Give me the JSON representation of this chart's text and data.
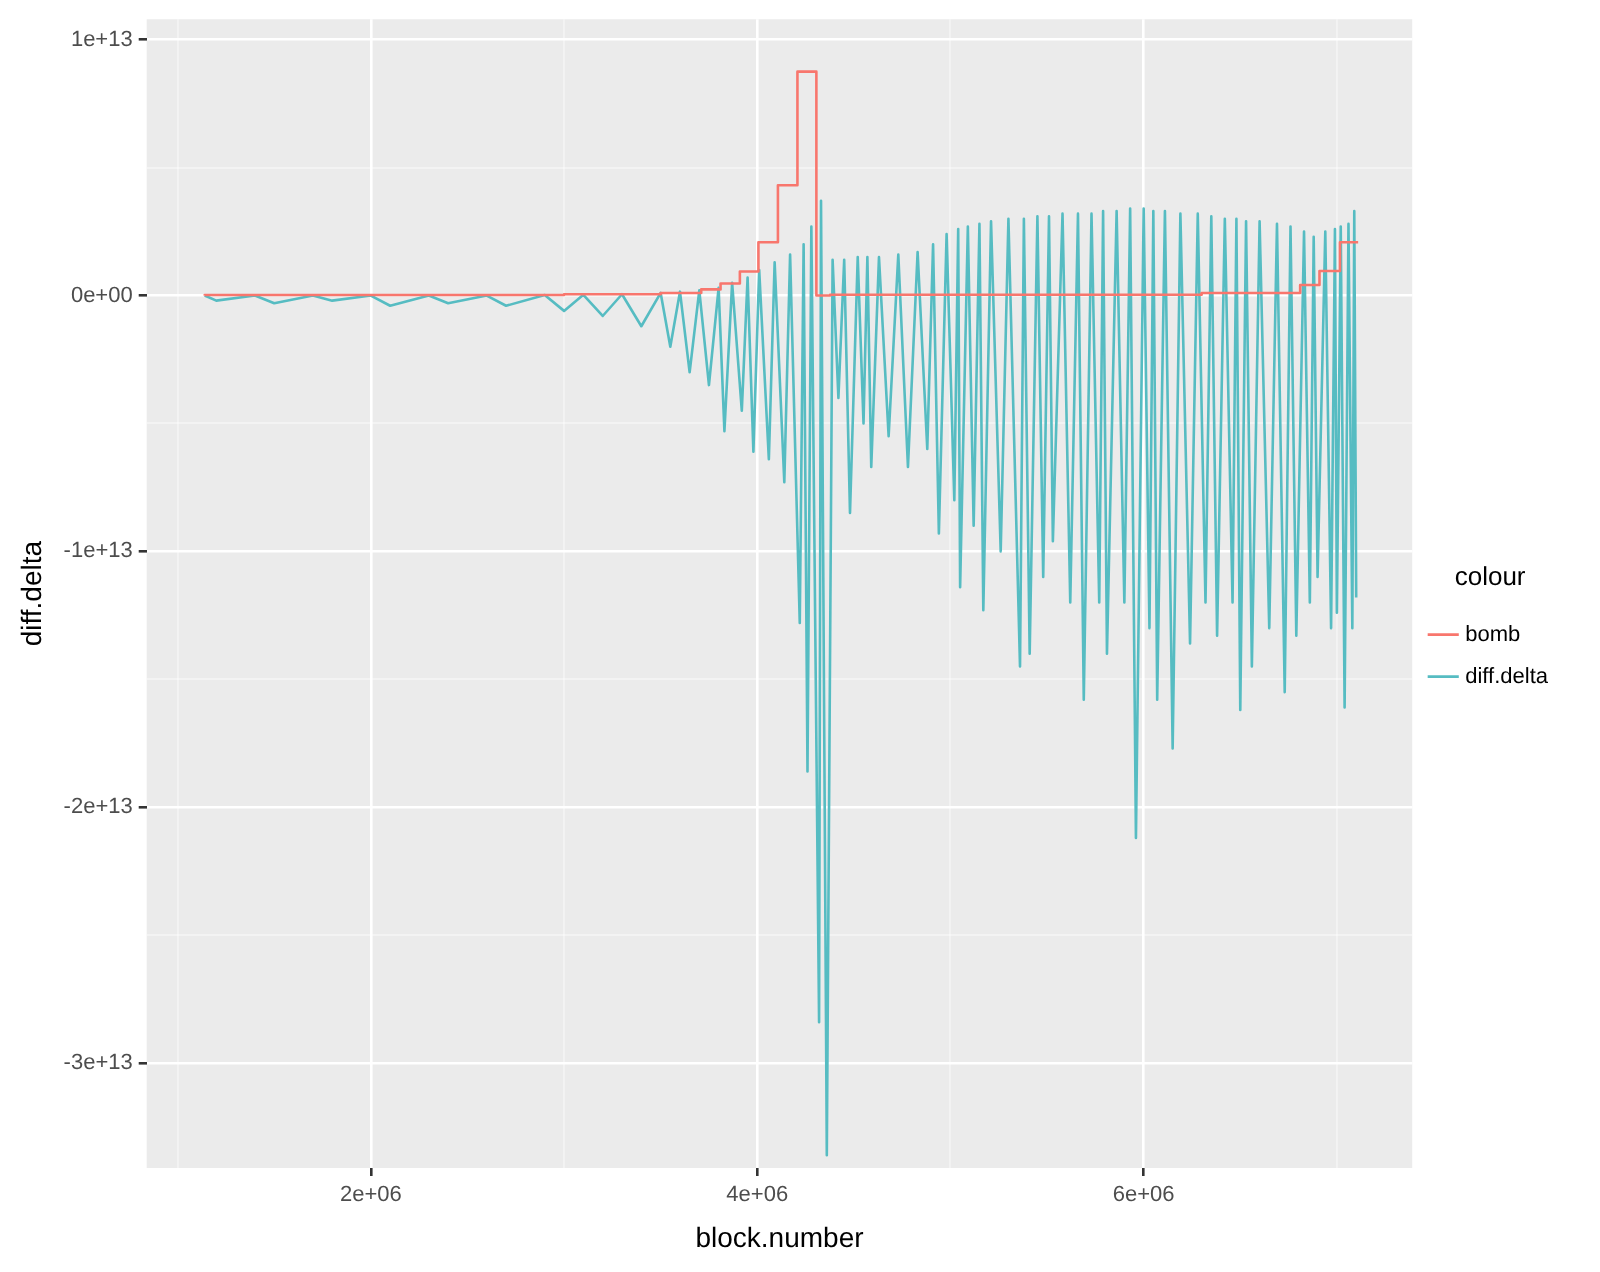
{
  "chart_data": {
    "type": "line",
    "xlabel": "block.number",
    "ylabel": "diff.delta",
    "legend_title": "colour",
    "legend": "right",
    "grid": true,
    "marker": "none",
    "xlim": [
      840000.0,
      7390000.0
    ],
    "ylim": [
      -34100000000000.0,
      10800000000000.0
    ],
    "xticks": [
      {
        "value": 1000000.0,
        "label": null
      },
      {
        "value": 2000000.0,
        "label": "2e+06"
      },
      {
        "value": 3000000.0,
        "label": null
      },
      {
        "value": 4000000.0,
        "label": "4e+06"
      },
      {
        "value": 5000000.0,
        "label": null
      },
      {
        "value": 6000000.0,
        "label": "6e+06"
      },
      {
        "value": 7000000.0,
        "label": null
      }
    ],
    "yticks": [
      {
        "value": -30000000000000.0,
        "label": "-3e+13"
      },
      {
        "value": -25000000000000.0,
        "label": null
      },
      {
        "value": -20000000000000.0,
        "label": "-2e+13"
      },
      {
        "value": -15000000000000.0,
        "label": null
      },
      {
        "value": -10000000000000.0,
        "label": "-1e+13"
      },
      {
        "value": -5000000000000.0,
        "label": null
      },
      {
        "value": 0,
        "label": "0e+00"
      },
      {
        "value": 5000000000000.0,
        "label": null
      },
      {
        "value": 10000000000000.0,
        "label": "1e+13"
      }
    ],
    "series": [
      {
        "name": "bomb",
        "type": "step",
        "color": "#f8766d",
        "x": [
          1140000.0,
          3000000.0,
          3500000.0,
          3710000.0,
          3810000.0,
          3910000.0,
          4006000.0,
          4107000.0,
          4208000.0,
          4306000.0,
          4377000.0,
          6300000.0,
          6810000.0,
          6910000.0,
          7016000.0,
          7110000.0
        ],
        "values": [
          0,
          20000000000.0,
          50000000000.0,
          100000000000.0,
          240000000000.0,
          470000000000.0,
          940000000000.0,
          2080000000000.0,
          4310000000000.0,
          8750000000000.0,
          0,
          30000000000.0,
          100000000000.0,
          410000000000.0,
          960000000000.0,
          2080000000000.0
        ]
      },
      {
        "name": "diff.delta",
        "type": "line",
        "color": "#56bcc2",
        "x": [
          1140000.0,
          1200000.0,
          1400000.0,
          1500000.0,
          1700000.0,
          1800000.0,
          2000000.0,
          2100000.0,
          2300000.0,
          2400000.0,
          2600000.0,
          2700000.0,
          2900000.0,
          3000000.0,
          3100000.0,
          3200000.0,
          3300000.0,
          3400000.0,
          3500000.0,
          3550000.0,
          3600000.0,
          3650000.0,
          3700000.0,
          3750000.0,
          3800000.0,
          3830000.0,
          3870000.0,
          3920000.0,
          3950000.0,
          3980000.0,
          4010000.0,
          4060000.0,
          4090000.0,
          4140000.0,
          4170000.0,
          4220000.0,
          4240000.0,
          4260000.0,
          4280000.0,
          4320000.0,
          4330000.0,
          4360000.0,
          4390000.0,
          4420000.0,
          4450000.0,
          4480000.0,
          4520000.0,
          4550000.0,
          4570000.0,
          4590000.0,
          4630000.0,
          4680000.0,
          4730000.0,
          4780000.0,
          4830000.0,
          4880000.0,
          4910000.0,
          4940000.0,
          4980000.0,
          5020000.0,
          5040000.0,
          5050000.0,
          5090000.0,
          5120000.0,
          5150000.0,
          5170000.0,
          5210000.0,
          5260000.0,
          5300000.0,
          5360000.0,
          5380000.0,
          5410000.0,
          5450000.0,
          5480000.0,
          5510000.0,
          5530000.0,
          5580000.0,
          5620000.0,
          5660000.0,
          5690000.0,
          5730000.0,
          5770000.0,
          5790000.0,
          5810000.0,
          5860000.0,
          5900000.0,
          5930000.0,
          5960000.0,
          6000000.0,
          6030000.0,
          6050000.0,
          6070000.0,
          6110000.0,
          6150000.0,
          6190000.0,
          6240000.0,
          6280000.0,
          6320000.0,
          6350000.0,
          6380000.0,
          6420000.0,
          6460000.0,
          6480000.0,
          6500000.0,
          6530000.0,
          6560000.0,
          6600000.0,
          6650000.0,
          6690000.0,
          6730000.0,
          6760000.0,
          6790000.0,
          6830000.0,
          6860000.0,
          6880000.0,
          6900000.0,
          6940000.0,
          6970000.0,
          6990000.0,
          7000000.0,
          7020000.0,
          7040000.0,
          7060000.0,
          7080000.0,
          7090000.0,
          7100000.0
        ],
        "values": [
          0,
          -200000000000.0,
          0,
          -300000000000.0,
          0,
          -200000000000.0,
          0,
          -400000000000.0,
          0,
          -300000000000.0,
          0,
          -400000000000.0,
          20000000000.0,
          -600000000000.0,
          30000000000.0,
          -800000000000.0,
          50000000000.0,
          -1200000000000.0,
          100000000000.0,
          -2000000000000.0,
          150000000000.0,
          -3000000000000.0,
          200000000000.0,
          -3500000000000.0,
          300000000000.0,
          -5300000000000.0,
          500000000000.0,
          -4500000000000.0,
          700000000000.0,
          -6100000000000.0,
          1000000000000.0,
          -6400000000000.0,
          1300000000000.0,
          -7300000000000.0,
          1600000000000.0,
          -12800000000000.0,
          2000000000000.0,
          -18600000000000.0,
          2700000000000.0,
          -28400000000000.0,
          3700000000000.0,
          -33600000000000.0,
          1400000000000.0,
          -4000000000000.0,
          1400000000000.0,
          -8500000000000.0,
          1500000000000.0,
          -5000000000000.0,
          1500000000000.0,
          -6700000000000.0,
          1500000000000.0,
          -5500000000000.0,
          1600000000000.0,
          -6700000000000.0,
          1700000000000.0,
          -6000000000000.0,
          2000000000000.0,
          -9300000000000.0,
          2400000000000.0,
          -8000000000000.0,
          2600000000000.0,
          -11400000000000.0,
          2700000000000.0,
          -9000000000000.0,
          2800000000000.0,
          -12300000000000.0,
          2900000000000.0,
          -10000000000000.0,
          3000000000000.0,
          -14500000000000.0,
          3000000000000.0,
          -14000000000000.0,
          3100000000000.0,
          -11000000000000.0,
          3100000000000.0,
          -9600000000000.0,
          3200000000000.0,
          -12000000000000.0,
          3200000000000.0,
          -15800000000000.0,
          3200000000000.0,
          -12000000000000.0,
          3300000000000.0,
          -14000000000000.0,
          3300000000000.0,
          -12000000000000.0,
          3400000000000.0,
          -21200000000000.0,
          3400000000000.0,
          -13000000000000.0,
          3300000000000.0,
          -15800000000000.0,
          3300000000000.0,
          -17700000000000.0,
          3200000000000.0,
          -13600000000000.0,
          3200000000000.0,
          -12000000000000.0,
          3100000000000.0,
          -13300000000000.0,
          3000000000000.0,
          -12000000000000.0,
          3000000000000.0,
          -16200000000000.0,
          2900000000000.0,
          -14500000000000.0,
          2900000000000.0,
          -13000000000000.0,
          2800000000000.0,
          -15500000000000.0,
          2700000000000.0,
          -13300000000000.0,
          2500000000000.0,
          -12000000000000.0,
          2300000000000.0,
          -11000000000000.0,
          2500000000000.0,
          -13000000000000.0,
          2600000000000.0,
          -12400000000000.0,
          2700000000000.0,
          -16100000000000.0,
          2800000000000.0,
          -13000000000000.0,
          3300000000000.0,
          -11800000000000.0
        ]
      }
    ]
  }
}
